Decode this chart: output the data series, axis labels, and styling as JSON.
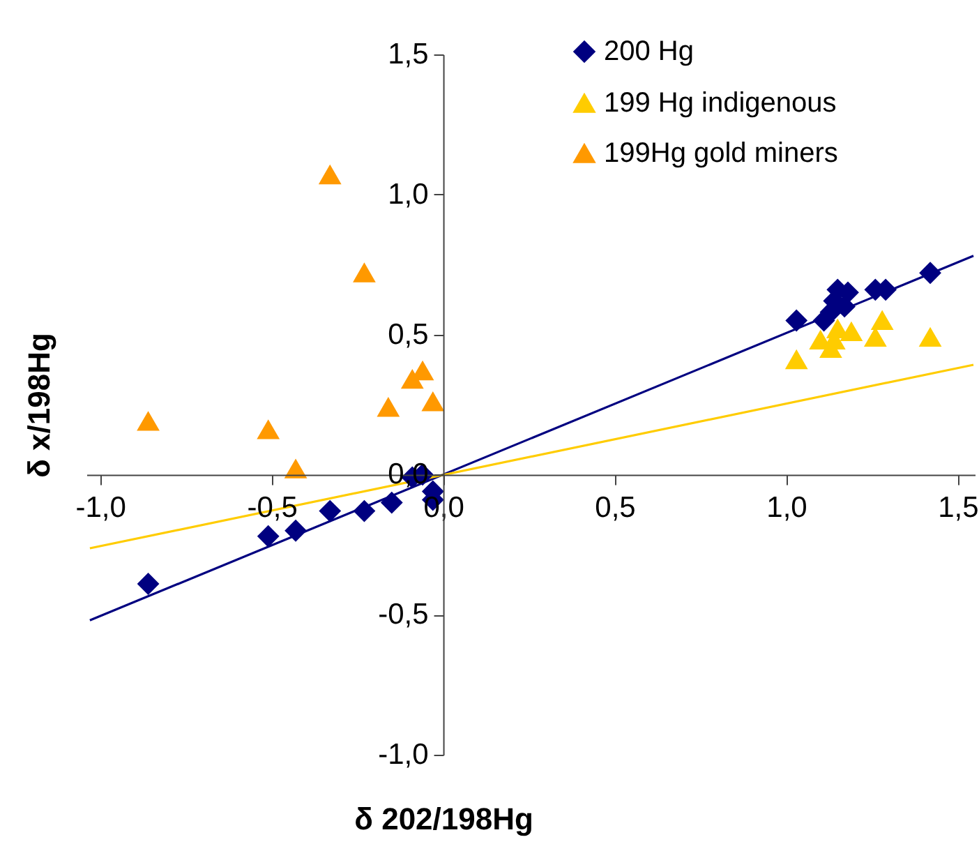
{
  "chart_data": {
    "type": "scatter",
    "xlabel": "δ 202/198Hg",
    "ylabel": "δ x/198Hg",
    "xlim": [
      -1.04,
      1.55
    ],
    "ylim": [
      -1.0,
      1.5
    ],
    "xticks": [
      {
        "value": -1.0,
        "label": "-1,0"
      },
      {
        "value": -0.5,
        "label": "-0,5"
      },
      {
        "value": 0,
        "label": "0,0"
      },
      {
        "value": 0.5,
        "label": "0,5"
      },
      {
        "value": 1.0,
        "label": "1,0"
      },
      {
        "value": 1.5,
        "label": "1,5"
      }
    ],
    "yticks": [
      {
        "value": -1.0,
        "label": "-1,0"
      },
      {
        "value": -0.5,
        "label": "-0,5"
      },
      {
        "value": 0,
        "label": "0,0"
      },
      {
        "value": 0.5,
        "label": "0,5"
      },
      {
        "value": 1.0,
        "label": "1,0"
      },
      {
        "value": 1.5,
        "label": "1,5"
      }
    ],
    "grid": false,
    "legend": "top right",
    "series": [
      {
        "type": "line",
        "color": "#000080",
        "x": [
          -1.03,
          1.546
        ],
        "values": [
          -0.52,
          0.781
        ]
      },
      {
        "type": "line",
        "color": "#ffcc00",
        "x": [
          -1.03,
          1.546
        ],
        "values": [
          -0.263,
          0.392
        ]
      },
      {
        "name": "200 Hg",
        "marker": "diamond",
        "color": "#000080",
        "x": [
          -0.86,
          -0.51,
          -0.43,
          -0.33,
          -0.23,
          -0.15,
          -0.09,
          -0.06,
          -0.03,
          -0.03,
          1.03,
          1.11,
          1.13,
          1.14,
          1.15,
          1.18,
          1.17,
          1.26,
          1.29,
          1.42
        ],
        "values": [
          -0.39,
          -0.22,
          -0.2,
          -0.13,
          -0.13,
          -0.1,
          -0.01,
          0.0,
          -0.06,
          -0.09,
          0.55,
          0.55,
          0.58,
          0.62,
          0.66,
          0.65,
          0.6,
          0.66,
          0.66,
          0.72
        ]
      },
      {
        "name": "199 Hg indigenous",
        "marker": "triangle",
        "color": "#ffcc00",
        "x": [
          1.03,
          1.1,
          1.13,
          1.14,
          1.15,
          1.19,
          1.26,
          1.28,
          1.42
        ],
        "values": [
          0.41,
          0.48,
          0.45,
          0.48,
          0.52,
          0.51,
          0.49,
          0.55,
          0.49
        ]
      },
      {
        "name": "199Hg gold miners",
        "marker": "triangle",
        "color": "#ff9900",
        "x": [
          -0.86,
          -0.51,
          -0.43,
          -0.33,
          -0.23,
          -0.16,
          -0.09,
          -0.06,
          -0.03
        ],
        "values": [
          0.19,
          0.16,
          0.02,
          1.07,
          0.72,
          0.24,
          0.34,
          0.37,
          0.26
        ]
      }
    ]
  }
}
